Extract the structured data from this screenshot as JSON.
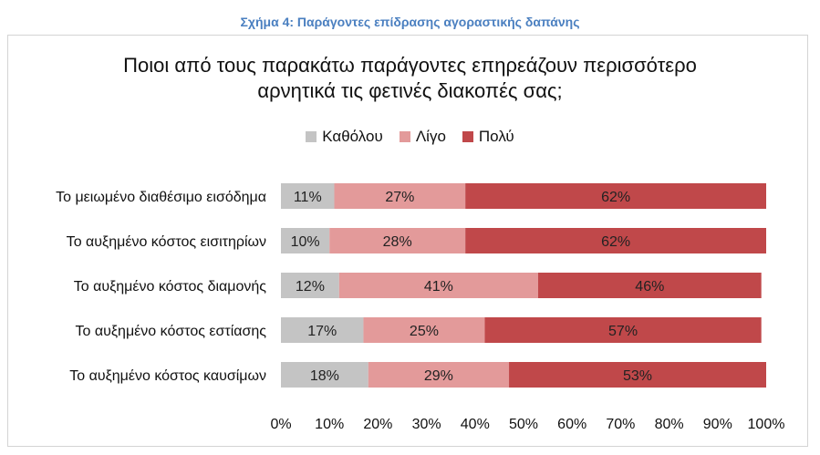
{
  "caption": "Σχήμα 4: Παράγοντες επίδρασης αγοραστικής δαπάνης",
  "chart_data": {
    "type": "bar",
    "orientation": "horizontal",
    "stacked": true,
    "title_lines": [
      "Ποιοι από τους παρακάτω παράγοντες επηρεάζουν περισσότερο",
      "αρνητικά τις φετινές διακοπές σας;"
    ],
    "categories": [
      "Το μειωμένο διαθέσιμο εισόδημα",
      "Το αυξημένο κόστος εισιτηρίων",
      "Το αυξημένο κόστος διαμονής",
      "Το αυξημένο κόστος εστίασης",
      "Το αυξημένο κόστος καυσίμων"
    ],
    "series": [
      {
        "name": "Καθόλου",
        "color": "#c4c4c4",
        "values": [
          11,
          10,
          12,
          17,
          18
        ],
        "labels": [
          "11%",
          "10%",
          "12%",
          "17%",
          "18%"
        ]
      },
      {
        "name": "Λίγο",
        "color": "#e39a9a",
        "values": [
          27,
          28,
          41,
          25,
          29
        ],
        "labels": [
          "27%",
          "28%",
          "41%",
          "25%",
          "29%"
        ]
      },
      {
        "name": "Πολύ",
        "color": "#c0484a",
        "values": [
          62,
          62,
          46,
          57,
          53
        ],
        "labels": [
          "62%",
          "62%",
          "46%",
          "57%",
          "53%"
        ]
      }
    ],
    "xlim": [
      0,
      100
    ],
    "xticks": [
      0,
      10,
      20,
      30,
      40,
      50,
      60,
      70,
      80,
      90,
      100
    ],
    "xtick_labels": [
      "0%",
      "10%",
      "20%",
      "30%",
      "40%",
      "50%",
      "60%",
      "70%",
      "80%",
      "90%",
      "100%"
    ],
    "legend_position": "top",
    "grid": false
  }
}
